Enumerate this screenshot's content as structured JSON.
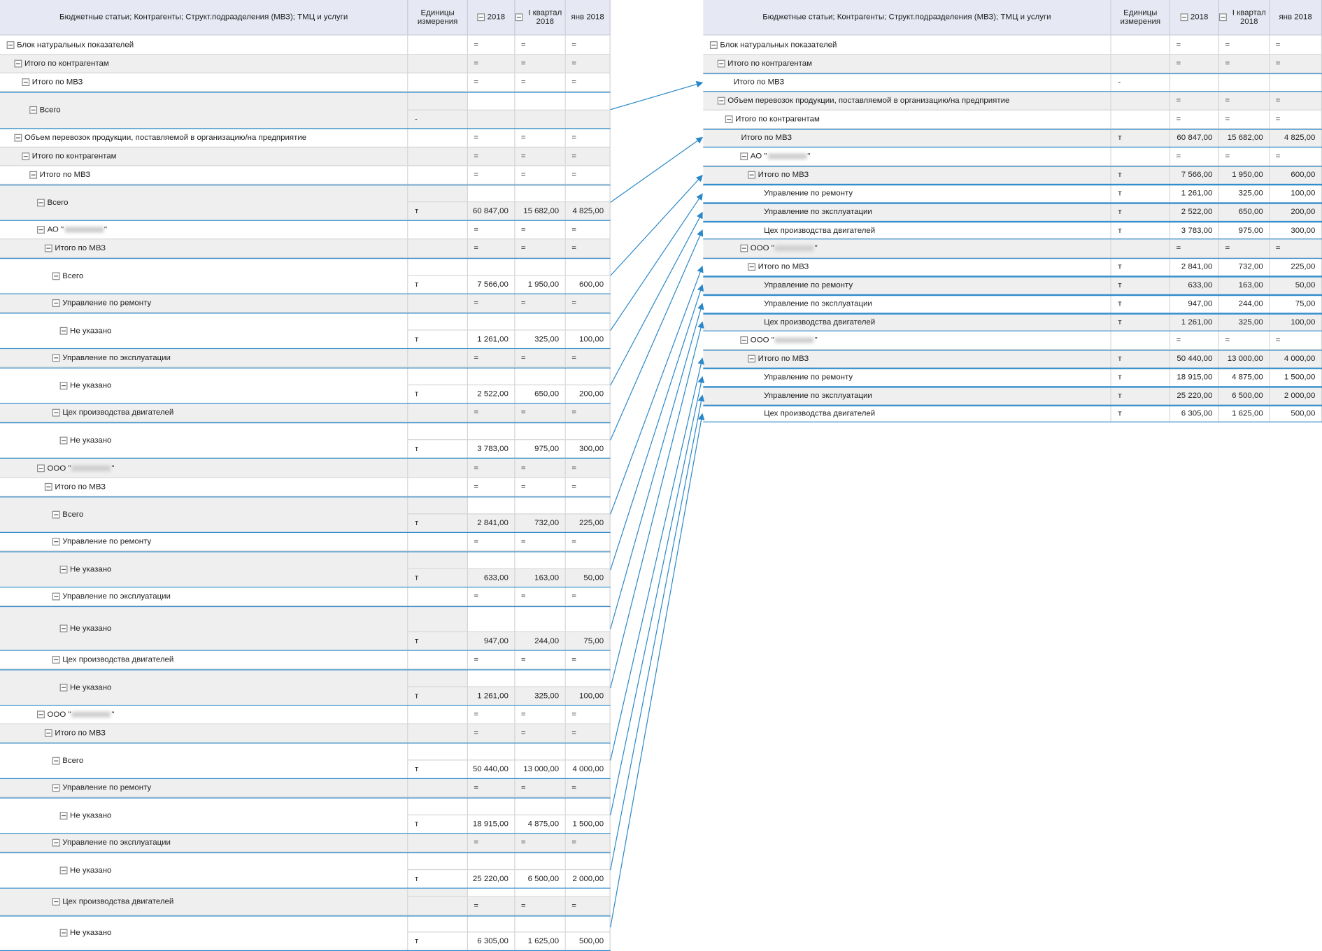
{
  "left_table": {
    "header": [
      "Бюджетные статьи; Контрагенты; Структ.подразделения (МВЗ); ТМЦ и услуги",
      "Единицы измерения",
      "2018",
      "I квартал 2018",
      "янв 2018"
    ],
    "rows": [
      {
        "label": "Блок натуральных показателей",
        "values": [
          "=",
          "=",
          "="
        ]
      },
      {
        "label": "Итого по контрагентам",
        "values": [
          "=",
          "=",
          "="
        ]
      },
      {
        "label": "Итого по МВЗ",
        "values": [
          "=",
          "=",
          "="
        ]
      },
      {
        "label": "Всего",
        "unit": "-"
      },
      {
        "label": "Объем перевозок продукции, поставляемой в организацию/на предприятие",
        "values": [
          "=",
          "=",
          "="
        ]
      },
      {
        "label": "Итого по контрагентам",
        "values": [
          "=",
          "=",
          "="
        ]
      },
      {
        "label": "Итого по МВЗ",
        "values": [
          "=",
          "=",
          "="
        ]
      },
      {
        "label": "Всего",
        "unit": "т",
        "values": [
          "60 847,00",
          "15 682,00",
          "4 825,00"
        ]
      },
      {
        "label": "АО \"",
        "label_end": "\"",
        "values": [
          "=",
          "=",
          "="
        ]
      },
      {
        "label": "Итого по МВЗ",
        "values": [
          "=",
          "=",
          "="
        ]
      },
      {
        "label": "Всего",
        "unit": "т",
        "values": [
          "7 566,00",
          "1 950,00",
          "600,00"
        ]
      },
      {
        "label": "Управление по ремонту",
        "values": [
          "=",
          "=",
          "="
        ]
      },
      {
        "label": "Не указано",
        "unit": "т",
        "values": [
          "1 261,00",
          "325,00",
          "100,00"
        ]
      },
      {
        "label": "Управление по эксплуатации",
        "values": [
          "=",
          "=",
          "="
        ]
      },
      {
        "label": "Не указано",
        "unit": "т",
        "values": [
          "2 522,00",
          "650,00",
          "200,00"
        ]
      },
      {
        "label": "Цех производства двигателей",
        "values": [
          "=",
          "=",
          "="
        ]
      },
      {
        "label": "Не указано",
        "unit": "т",
        "values": [
          "3 783,00",
          "975,00",
          "300,00"
        ]
      },
      {
        "label": "ООО \"",
        "label_end": "\"",
        "values": [
          "=",
          "=",
          "="
        ]
      },
      {
        "label": "Итого по МВЗ",
        "values": [
          "=",
          "=",
          "="
        ]
      },
      {
        "label": "Всего",
        "unit": "т",
        "values": [
          "2 841,00",
          "732,00",
          "225,00"
        ]
      },
      {
        "label": "Управление по ремонту",
        "values": [
          "=",
          "=",
          "="
        ]
      },
      {
        "label": "Не указано",
        "unit": "т",
        "values": [
          "633,00",
          "163,00",
          "50,00"
        ]
      },
      {
        "label": "Управление по эксплуатации",
        "values": [
          "=",
          "=",
          "="
        ]
      },
      {
        "label": "Не указано",
        "unit": "т",
        "values": [
          "947,00",
          "244,00",
          "75,00"
        ]
      },
      {
        "label": "Цех производства двигателей",
        "values": [
          "=",
          "=",
          "="
        ]
      },
      {
        "label": "Не указано",
        "unit": "т",
        "values": [
          "1 261,00",
          "325,00",
          "100,00"
        ]
      },
      {
        "label": "ООО \"",
        "label_end": "\"",
        "values": [
          "=",
          "=",
          "="
        ]
      },
      {
        "label": "Итого по МВЗ",
        "values": [
          "=",
          "=",
          "="
        ]
      },
      {
        "label": "Всего",
        "unit": "т",
        "values": [
          "50 440,00",
          "13 000,00",
          "4 000,00"
        ]
      },
      {
        "label": "Управление по ремонту",
        "values": [
          "=",
          "=",
          "="
        ]
      },
      {
        "label": "Не указано",
        "unit": "т",
        "values": [
          "18 915,00",
          "4 875,00",
          "1 500,00"
        ]
      },
      {
        "label": "Управление по эксплуатации",
        "values": [
          "=",
          "=",
          "="
        ]
      },
      {
        "label": "Не указано",
        "unit": "т",
        "values": [
          "25 220,00",
          "6 500,00",
          "2 000,00"
        ]
      },
      {
        "label": "Цех производства двигателей",
        "values": [
          "=",
          "=",
          "="
        ]
      },
      {
        "label": "Не указано",
        "unit": "т",
        "values": [
          "6 305,00",
          "1 625,00",
          "500,00"
        ]
      }
    ]
  },
  "right_table": {
    "header": [
      "Бюджетные статьи; Контрагенты; Структ.подразделения (МВЗ); ТМЦ и услуги",
      "Единицы измерения",
      "2018",
      "I квартал 2018",
      "янв 2018"
    ],
    "rows": [
      {
        "label": "Блок натуральных показателей",
        "values": [
          "=",
          "=",
          "="
        ]
      },
      {
        "label": "Итого по контрагентам",
        "values": [
          "=",
          "=",
          "="
        ]
      },
      {
        "label": "Итого по МВЗ",
        "unit": "-"
      },
      {
        "label": "Объем перевозок продукции, поставляемой в организацию/на предприятие",
        "values": [
          "=",
          "=",
          "="
        ]
      },
      {
        "label": "Итого по контрагентам",
        "values": [
          "=",
          "=",
          "="
        ]
      },
      {
        "label": "Итого по МВЗ",
        "unit": "т",
        "values": [
          "60 847,00",
          "15 682,00",
          "4 825,00"
        ]
      },
      {
        "label": "АО \"",
        "label_end": "\"",
        "values": [
          "=",
          "=",
          "="
        ]
      },
      {
        "label": "Итого по МВЗ",
        "unit": "т",
        "values": [
          "7 566,00",
          "1 950,00",
          "600,00"
        ]
      },
      {
        "label": "Управление по ремонту",
        "unit": "т",
        "values": [
          "1 261,00",
          "325,00",
          "100,00"
        ]
      },
      {
        "label": "Управление по эксплуатации",
        "unit": "т",
        "values": [
          "2 522,00",
          "650,00",
          "200,00"
        ]
      },
      {
        "label": "Цех производства двигателей",
        "unit": "т",
        "values": [
          "3 783,00",
          "975,00",
          "300,00"
        ]
      },
      {
        "label": "ООО \"",
        "label_end": "\"",
        "values": [
          "=",
          "=",
          "="
        ]
      },
      {
        "label": "Итого по МВЗ",
        "unit": "т",
        "values": [
          "2 841,00",
          "732,00",
          "225,00"
        ]
      },
      {
        "label": "Управление по ремонту",
        "unit": "т",
        "values": [
          "633,00",
          "163,00",
          "50,00"
        ]
      },
      {
        "label": "Управление по эксплуатации",
        "unit": "т",
        "values": [
          "947,00",
          "244,00",
          "75,00"
        ]
      },
      {
        "label": "Цех производства двигателей",
        "unit": "т",
        "values": [
          "1 261,00",
          "325,00",
          "100,00"
        ]
      },
      {
        "label": "ООО \"",
        "label_end": "\"",
        "values": [
          "=",
          "=",
          "="
        ]
      },
      {
        "label": "Итого по МВЗ",
        "unit": "т",
        "values": [
          "50 440,00",
          "13 000,00",
          "4 000,00"
        ]
      },
      {
        "label": "Управление по ремонту",
        "unit": "т",
        "values": [
          "18 915,00",
          "4 875,00",
          "1 500,00"
        ]
      },
      {
        "label": "Управление по эксплуатации",
        "unit": "т",
        "values": [
          "25 220,00",
          "6 500,00",
          "2 000,00"
        ]
      },
      {
        "label": "Цех производства двигателей",
        "unit": "т",
        "values": [
          "6 305,00",
          "1 625,00",
          "500,00"
        ]
      }
    ]
  }
}
